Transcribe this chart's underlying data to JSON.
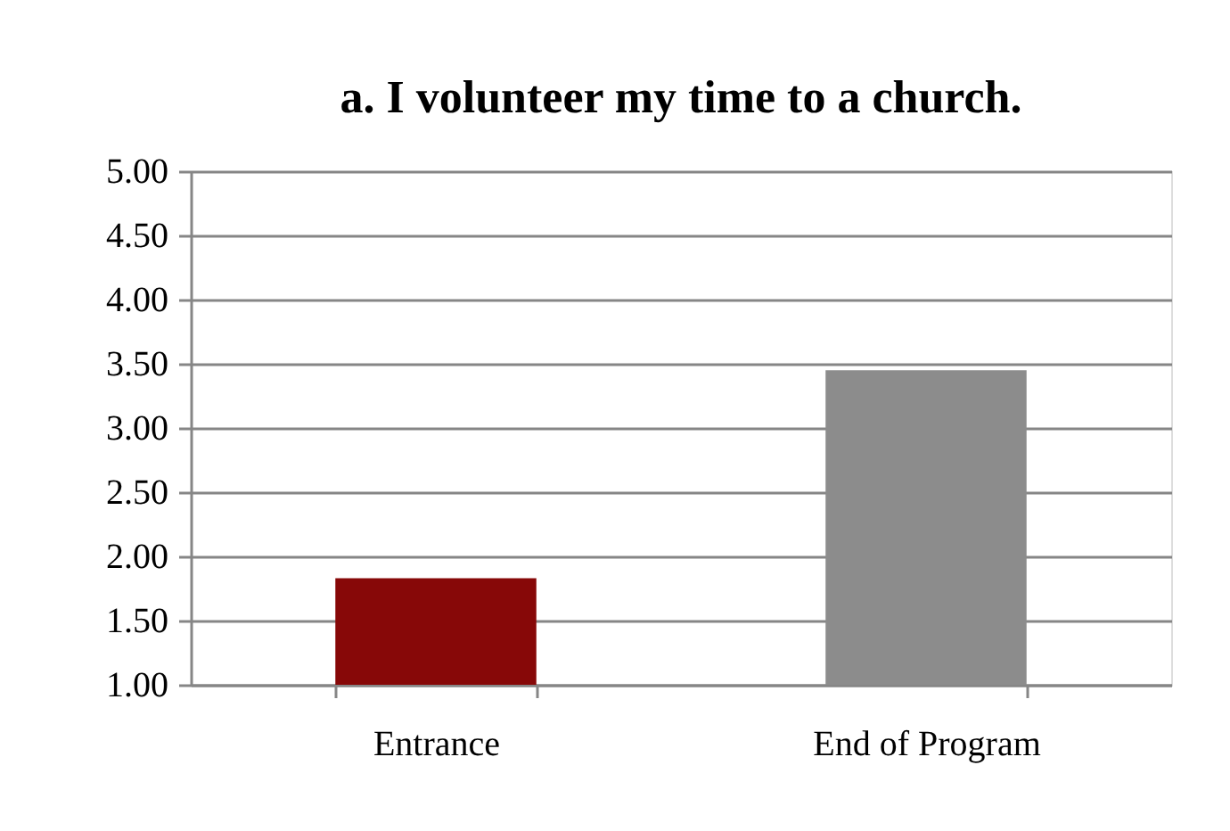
{
  "chart_data": {
    "type": "bar",
    "title": "a. I volunteer my time to a church.",
    "categories": [
      "Entrance",
      "End of Program"
    ],
    "values": [
      1.83,
      3.45
    ],
    "colors": [
      "#870808",
      "#8c8c8c"
    ],
    "ylim": [
      1,
      5
    ],
    "yticks": [
      {
        "value": 1,
        "label": "1.00"
      },
      {
        "value": 1.5,
        "label": "1.50"
      },
      {
        "value": 2,
        "label": "2.00"
      },
      {
        "value": 2.5,
        "label": "2.50"
      },
      {
        "value": 3,
        "label": "3.00"
      },
      {
        "value": 3.5,
        "label": "3.50"
      },
      {
        "value": 4,
        "label": "4.00"
      },
      {
        "value": 4.5,
        "label": "4.50"
      },
      {
        "value": 5,
        "label": "5.00"
      }
    ],
    "grid": "y",
    "legend": false
  }
}
